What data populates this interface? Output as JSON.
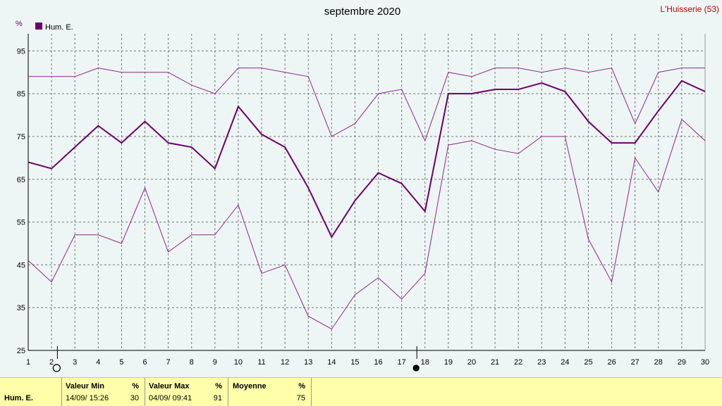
{
  "header": {
    "title": "septembre 2020",
    "station": "L'Huisserie (53)"
  },
  "chart_data": {
    "type": "line",
    "title": "septembre 2020",
    "ylabel": "%",
    "ylim": [
      25,
      99
    ],
    "yticks": [
      25,
      35,
      45,
      55,
      65,
      75,
      85,
      95
    ],
    "x": [
      1,
      2,
      3,
      4,
      5,
      6,
      7,
      8,
      9,
      10,
      11,
      12,
      13,
      14,
      15,
      16,
      17,
      18,
      19,
      20,
      21,
      22,
      23,
      24,
      25,
      26,
      27,
      28,
      29,
      30
    ],
    "legend": "top-left",
    "grid": true,
    "series": [
      {
        "name": "Hum. E.",
        "role": "mean",
        "color": "#6a006a",
        "values": [
          69,
          67.5,
          72.5,
          77.5,
          73.5,
          78.5,
          73.5,
          72.5,
          67.5,
          82,
          75.5,
          72.5,
          63,
          51.5,
          60,
          66.5,
          64,
          57.5,
          85,
          85,
          86,
          86,
          87.5,
          85.5,
          78.5,
          73.5,
          73.5,
          81,
          88,
          85.5
        ]
      },
      {
        "role": "max",
        "color": "#8a2a8a",
        "values": [
          89,
          89,
          89,
          91,
          90,
          90,
          90,
          87,
          85,
          91,
          91,
          90,
          89,
          75,
          78,
          85,
          86,
          74,
          90,
          89,
          91,
          91,
          90,
          91,
          90,
          91,
          78,
          90,
          91,
          91
        ]
      },
      {
        "role": "min",
        "color": "#8a2a8a",
        "values": [
          46,
          41,
          52,
          52,
          50,
          63,
          48,
          52,
          52,
          59,
          43,
          45,
          33,
          30,
          38,
          42,
          37,
          43,
          73,
          74,
          72,
          71,
          75,
          75,
          51,
          41,
          70,
          62,
          79,
          74
        ]
      }
    ],
    "markers": [
      {
        "x": 2.25,
        "symbol": "open-circle"
      },
      {
        "x": 17.65,
        "symbol": "filled-circle"
      }
    ]
  },
  "stats": {
    "row_label": "Hum. E.",
    "min": {
      "label": "Valeur Min",
      "unit": "%",
      "when": "14/09/ 15:26",
      "value": "30"
    },
    "max": {
      "label": "Valeur Max",
      "unit": "%",
      "when": "04/09/ 09:41",
      "value": "91"
    },
    "avg": {
      "label": "Moyenne",
      "unit": "%",
      "value": "75"
    }
  }
}
